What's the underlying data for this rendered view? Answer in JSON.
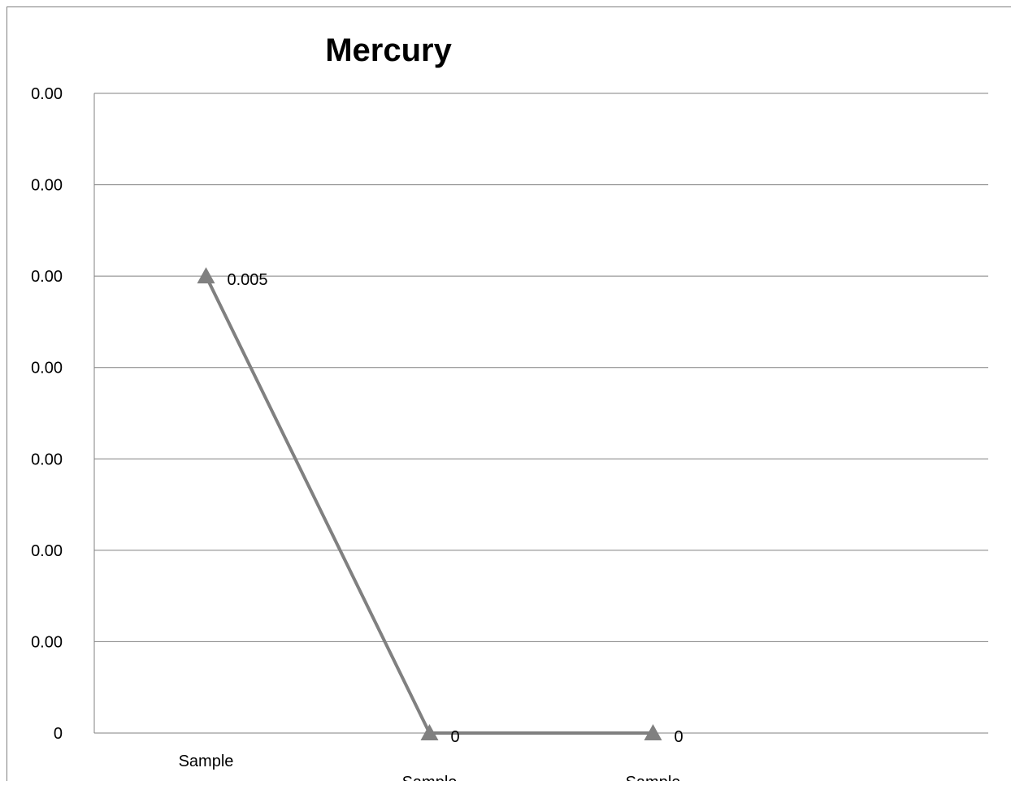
{
  "chart_data": {
    "type": "line",
    "title": "Mercury",
    "xlabel": "",
    "ylabel": "",
    "categories": [
      "Sample",
      "Sample",
      "Sample"
    ],
    "series": [
      {
        "values": [
          0.005,
          0,
          0
        ],
        "data_labels": [
          "0.005",
          "0",
          "0"
        ]
      }
    ],
    "y_tick_labels": [
      "0",
      "0.00",
      "0.00",
      "0.00",
      "0.00",
      "0.00",
      "0.00",
      "0.00"
    ],
    "ylim": [
      0,
      0.007
    ],
    "grid": true,
    "legend": "none",
    "colors": {
      "line": "#808080",
      "grid": "#808080",
      "border": "#808080"
    }
  }
}
